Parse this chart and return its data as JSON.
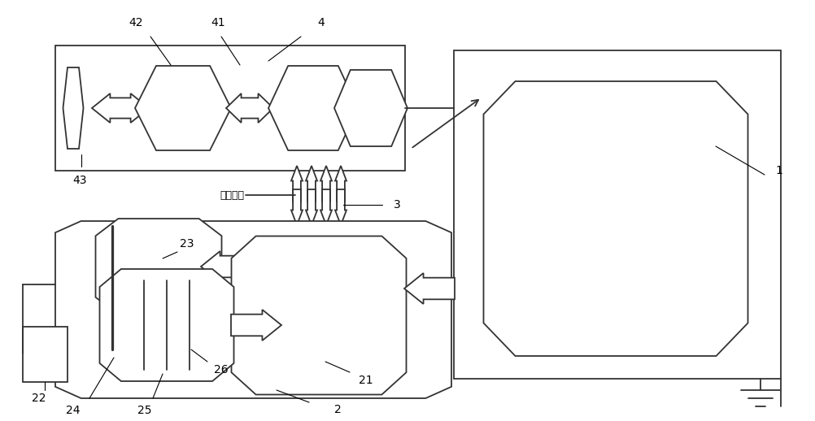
{
  "bg": "#ffffff",
  "lc": "#333333",
  "lw": 1.3,
  "fw": 10.03,
  "fh": 5.18,
  "comm_text": "通讯接口"
}
